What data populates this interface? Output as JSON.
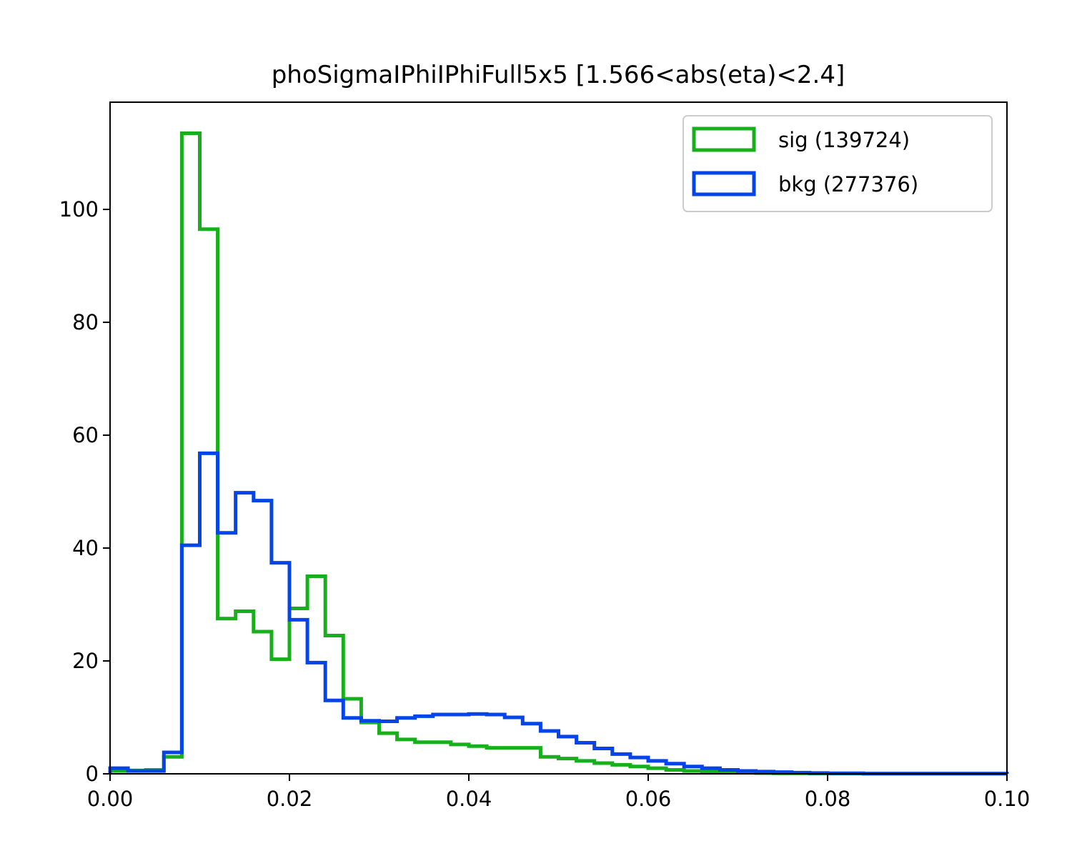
{
  "chart_data": {
    "type": "histogram",
    "title": "phoSigmaIPhiIPhiFull5x5 [1.566<abs(eta)<2.4]",
    "xlabel": "",
    "ylabel": "",
    "xlim": [
      0.0,
      0.1
    ],
    "ylim": [
      0,
      119
    ],
    "xticks": [
      "0.00",
      "0.02",
      "0.04",
      "0.06",
      "0.08",
      "0.10"
    ],
    "yticks": [
      "0",
      "20",
      "40",
      "60",
      "80",
      "100"
    ],
    "grid": false,
    "legend_position": "top-right",
    "bin_edges": [
      0.0,
      0.002,
      0.004,
      0.006,
      0.008,
      0.01,
      0.012,
      0.014,
      0.016,
      0.018,
      0.02,
      0.022,
      0.024,
      0.026,
      0.028,
      0.03,
      0.032,
      0.034,
      0.036,
      0.038,
      0.04,
      0.042,
      0.044,
      0.046,
      0.048,
      0.05,
      0.052,
      0.054,
      0.056,
      0.058,
      0.06,
      0.062,
      0.064,
      0.066,
      0.068,
      0.07,
      0.072,
      0.074,
      0.076,
      0.078,
      0.08,
      0.082,
      0.084,
      0.086,
      0.088,
      0.09,
      0.092,
      0.094,
      0.096,
      0.098,
      0.1
    ],
    "series": [
      {
        "name": "sig (139724)",
        "color": "#17b01c",
        "values": [
          0.5,
          0.6,
          0.7,
          3.0,
          113.5,
          96.5,
          27.5,
          28.8,
          25.2,
          20.3,
          29.3,
          35.0,
          24.5,
          13.3,
          9.1,
          7.2,
          6.1,
          5.6,
          5.6,
          5.2,
          4.9,
          4.6,
          4.6,
          4.6,
          3.0,
          2.7,
          2.3,
          1.9,
          1.6,
          1.3,
          1.0,
          0.7,
          0.5,
          0.4,
          0.3,
          0.2,
          0.15,
          0.1,
          0.1,
          0.05,
          0.05,
          0.05,
          0.02,
          0.02,
          0.02,
          0.02,
          0.02,
          0.02,
          0.02,
          0.02
        ]
      },
      {
        "name": "bkg (277376)",
        "color": "#0444e8",
        "values": [
          1.0,
          0.5,
          0.5,
          3.8,
          40.5,
          56.8,
          42.7,
          49.8,
          48.4,
          37.4,
          27.3,
          19.7,
          13.0,
          9.9,
          9.4,
          9.3,
          9.9,
          10.2,
          10.5,
          10.5,
          10.6,
          10.5,
          10.0,
          8.9,
          7.6,
          6.6,
          5.5,
          4.5,
          3.5,
          2.9,
          2.3,
          1.8,
          1.3,
          1.0,
          0.7,
          0.5,
          0.4,
          0.3,
          0.2,
          0.15,
          0.1,
          0.1,
          0.05,
          0.05,
          0.05,
          0.05,
          0.05,
          0.05,
          0.05,
          0.05
        ]
      }
    ]
  }
}
